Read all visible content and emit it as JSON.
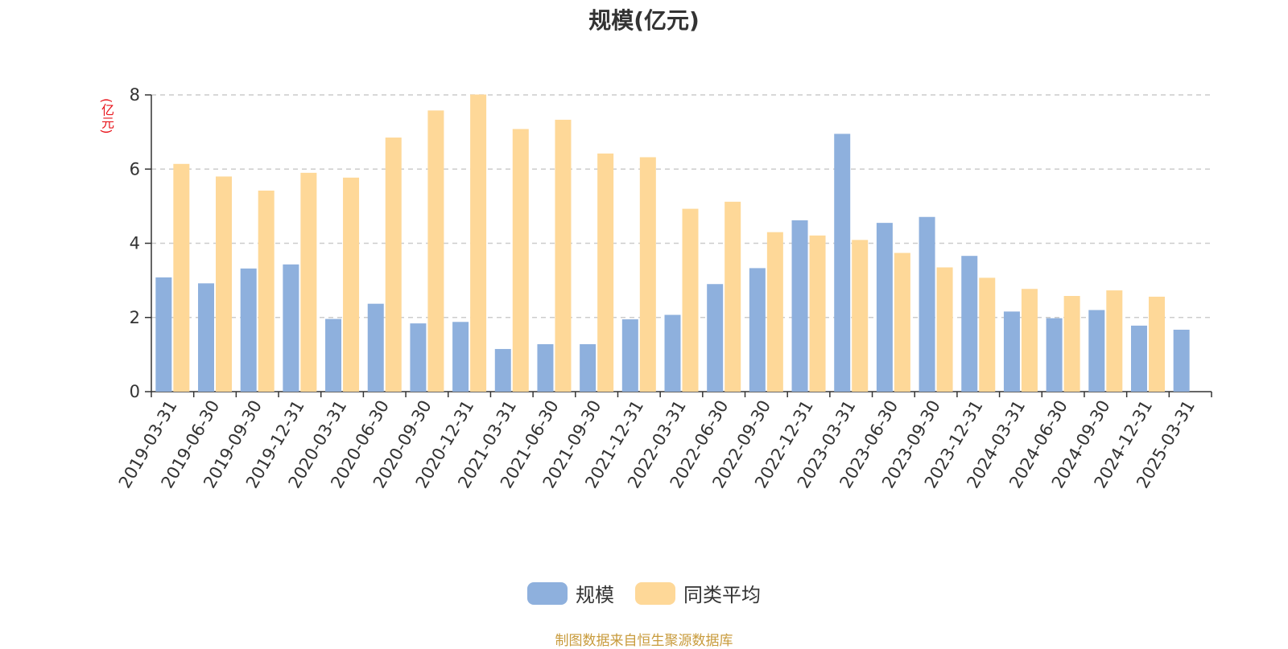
{
  "chart_data": {
    "type": "bar",
    "title": "规模(亿元)",
    "ylabel": "(亿元)",
    "ylim": [
      0,
      8
    ],
    "yticks": [
      0,
      2,
      4,
      6,
      8
    ],
    "grid": "horizontal-dashed",
    "legend_position": "bottom",
    "categories": [
      "2019-03-31",
      "2019-06-30",
      "2019-09-30",
      "2019-12-31",
      "2020-03-31",
      "2020-06-30",
      "2020-09-30",
      "2020-12-31",
      "2021-03-31",
      "2021-06-30",
      "2021-09-30",
      "2021-12-31",
      "2022-03-31",
      "2022-06-30",
      "2022-09-30",
      "2022-12-31",
      "2023-03-31",
      "2023-06-30",
      "2023-09-30",
      "2023-12-31",
      "2024-03-31",
      "2024-06-30",
      "2024-09-30",
      "2024-12-31",
      "2025-03-31"
    ],
    "series": [
      {
        "name": "规模",
        "color": "#8eb0dd",
        "values": [
          3.08,
          2.92,
          3.32,
          3.43,
          1.96,
          2.37,
          1.84,
          1.88,
          1.15,
          1.28,
          1.28,
          1.95,
          2.07,
          2.9,
          3.33,
          4.62,
          6.95,
          4.55,
          4.71,
          3.66,
          2.16,
          1.98,
          2.2,
          1.78,
          1.67
        ]
      },
      {
        "name": "同类平均",
        "color": "#fed898",
        "values": [
          6.14,
          5.8,
          5.42,
          5.9,
          5.77,
          6.85,
          7.58,
          8.01,
          7.08,
          7.33,
          6.42,
          6.32,
          4.93,
          5.12,
          4.3,
          4.21,
          4.09,
          3.74,
          3.35,
          3.07,
          2.77,
          2.58,
          2.73,
          2.56,
          null
        ]
      }
    ]
  },
  "source_text": "制图数据来自恒生聚源数据库"
}
